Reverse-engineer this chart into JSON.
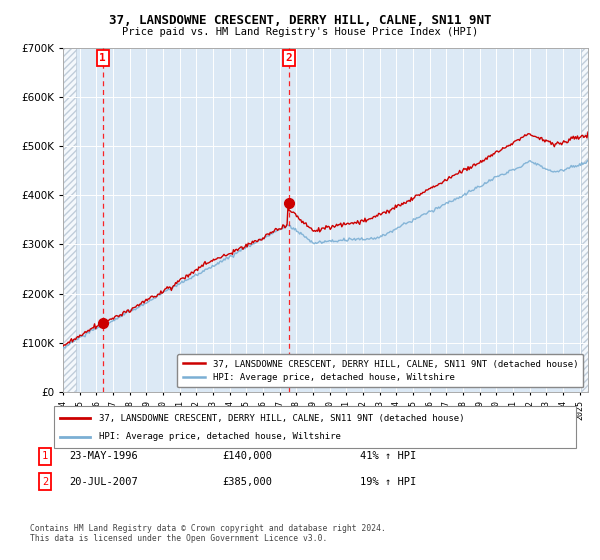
{
  "title": "37, LANSDOWNE CRESCENT, DERRY HILL, CALNE, SN11 9NT",
  "subtitle": "Price paid vs. HM Land Registry's House Price Index (HPI)",
  "legend_line1": "37, LANSDOWNE CRESCENT, DERRY HILL, CALNE, SN11 9NT (detached house)",
  "legend_line2": "HPI: Average price, detached house, Wiltshire",
  "sale1_date": "23-MAY-1996",
  "sale1_price": 140000,
  "sale1_label": "41% ↑ HPI",
  "sale2_date": "20-JUL-2007",
  "sale2_price": 385000,
  "sale2_label": "19% ↑ HPI",
  "footer": "Contains HM Land Registry data © Crown copyright and database right 2024.\nThis data is licensed under the Open Government Licence v3.0.",
  "ylim": [
    0,
    700000
  ],
  "xlim_start": 1994.0,
  "xlim_end": 2025.5,
  "sale1_year": 1996.38,
  "sale2_year": 2007.54,
  "bg_color": "#dce9f5",
  "red_line_color": "#cc0000",
  "blue_line_color": "#7bafd4"
}
